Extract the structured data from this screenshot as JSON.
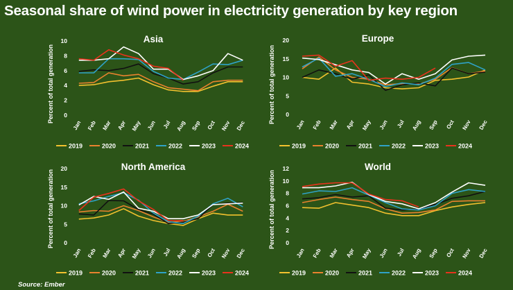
{
  "title": "Seasonal share of wind power in electricity generation by key region",
  "source": "Source: Ember",
  "colors": {
    "background": "#2c5418",
    "2019": "#f2c12e",
    "2020": "#e9822e",
    "2021": "#111111",
    "2022": "#2fa2c7",
    "2023": "#ffffff",
    "2024": "#e8331d"
  },
  "chart_data": [
    {
      "type": "line",
      "title": "Asia",
      "ylabel": "Percent of total generation",
      "xlabel": "",
      "ylim": [
        0,
        10
      ],
      "yticks": [
        0,
        2,
        4,
        6,
        8,
        10
      ],
      "categories": [
        "Jan",
        "Feb",
        "Mar",
        "Apr",
        "May",
        "Jun",
        "Jul",
        "Aug",
        "Sep",
        "Oct",
        "Nov",
        "Dec"
      ],
      "series": [
        {
          "name": "2019",
          "values": [
            4.0,
            4.1,
            4.5,
            4.7,
            5.0,
            4.1,
            3.4,
            3.2,
            3.2,
            3.9,
            4.5,
            4.5
          ]
        },
        {
          "name": "2020",
          "values": [
            4.3,
            4.4,
            5.7,
            5.3,
            5.5,
            4.5,
            3.7,
            3.5,
            3.3,
            4.5,
            4.7,
            4.7
          ]
        },
        {
          "name": "2021",
          "values": [
            5.9,
            6.1,
            6.0,
            6.3,
            6.9,
            5.6,
            5.0,
            4.2,
            4.5,
            5.7,
            6.5,
            6.5
          ]
        },
        {
          "name": "2022",
          "values": [
            5.7,
            5.7,
            7.6,
            7.6,
            7.5,
            5.9,
            5.0,
            4.8,
            5.8,
            6.9,
            6.8,
            7.4
          ]
        },
        {
          "name": "2023",
          "values": [
            7.4,
            7.4,
            7.6,
            9.2,
            8.3,
            6.2,
            6.2,
            4.8,
            5.3,
            6.0,
            8.3,
            7.4
          ]
        },
        {
          "name": "2024",
          "values": [
            7.6,
            7.4,
            8.8,
            8.1,
            7.6,
            6.6,
            6.3,
            4.7,
            null,
            null,
            null,
            null
          ]
        }
      ]
    },
    {
      "type": "line",
      "title": "Europe",
      "ylabel": "Percent of total generation",
      "xlabel": "",
      "ylim": [
        0,
        20
      ],
      "yticks": [
        0,
        5,
        10,
        15,
        20
      ],
      "categories": [
        "Jan",
        "Feb",
        "Mar",
        "Apr",
        "May",
        "Jun",
        "Jul",
        "Aug",
        "Sep",
        "Oct",
        "Nov",
        "Dec"
      ],
      "series": [
        {
          "name": "2019",
          "values": [
            10.0,
            9.5,
            12.5,
            8.7,
            8.2,
            7.2,
            6.9,
            7.2,
            9.2,
            9.5,
            10.1,
            12.0
          ]
        },
        {
          "name": "2020",
          "values": [
            12.3,
            15.5,
            12.0,
            10.0,
            9.5,
            8.0,
            8.3,
            8.2,
            9.5,
            12.6,
            11.0,
            11.7
          ]
        },
        {
          "name": "2021",
          "values": [
            10.0,
            12.0,
            11.0,
            9.5,
            10.7,
            6.5,
            8.0,
            8.5,
            7.7,
            12.5,
            11.0,
            11.4
          ]
        },
        {
          "name": "2022",
          "values": [
            12.8,
            15.2,
            10.3,
            11.0,
            9.5,
            7.5,
            8.5,
            8.0,
            9.8,
            13.5,
            14.0,
            12.0
          ]
        },
        {
          "name": "2023",
          "values": [
            15.2,
            14.8,
            13.4,
            12.0,
            11.3,
            8.2,
            11.0,
            9.5,
            11.0,
            14.7,
            15.7,
            16.0
          ]
        },
        {
          "name": "2024",
          "values": [
            15.7,
            16.0,
            13.0,
            14.5,
            9.2,
            9.8,
            9.5,
            10.0,
            12.5,
            null,
            null,
            null
          ]
        }
      ]
    },
    {
      "type": "line",
      "title": "North America",
      "ylabel": "Percent of total generation",
      "xlabel": "",
      "ylim": [
        0,
        20
      ],
      "yticks": [
        0,
        5,
        10,
        15,
        20
      ],
      "categories": [
        "Jan",
        "Feb",
        "Mar",
        "Apr",
        "May",
        "Jun",
        "Jul",
        "Aug",
        "Sep",
        "Oct",
        "Nov",
        "Dec"
      ],
      "series": [
        {
          "name": "2019",
          "values": [
            6.4,
            6.7,
            7.5,
            9.2,
            7.2,
            6.0,
            5.2,
            4.7,
            6.5,
            8.0,
            7.5,
            7.5
          ]
        },
        {
          "name": "2020",
          "values": [
            8.3,
            8.7,
            8.5,
            10.0,
            8.7,
            7.0,
            5.5,
            5.8,
            7.0,
            8.5,
            10.4,
            8.5
          ]
        },
        {
          "name": "2021",
          "values": [
            7.8,
            7.5,
            11.4,
            11.3,
            9.0,
            7.7,
            5.2,
            5.6,
            6.5,
            10.3,
            10.7,
            10.8
          ]
        },
        {
          "name": "2022",
          "values": [
            10.5,
            11.3,
            12.5,
            13.5,
            11.5,
            8.0,
            5.7,
            5.2,
            7.2,
            10.5,
            12.0,
            9.7
          ]
        },
        {
          "name": "2023",
          "values": [
            10.2,
            12.5,
            11.7,
            13.7,
            9.3,
            8.5,
            6.5,
            6.5,
            7.5,
            10.3,
            10.5,
            10.7
          ]
        },
        {
          "name": "2024",
          "values": [
            8.7,
            12.3,
            13.3,
            14.5,
            11.3,
            9.0,
            6.0,
            6.0,
            null,
            null,
            null,
            null
          ]
        }
      ]
    },
    {
      "type": "line",
      "title": "World",
      "ylabel": "Percent of total generation",
      "xlabel": "",
      "ylim": [
        0,
        12
      ],
      "yticks": [
        0,
        2,
        4,
        6,
        8,
        10,
        12
      ],
      "categories": [
        "Jan",
        "Feb",
        "Mar",
        "Apr",
        "May",
        "Jun",
        "Jul",
        "Aug",
        "Sep",
        "Oct",
        "Nov",
        "Dec"
      ],
      "series": [
        {
          "name": "2019",
          "values": [
            5.7,
            5.6,
            6.5,
            6.1,
            5.7,
            4.8,
            4.4,
            4.4,
            5.2,
            5.8,
            6.2,
            6.5
          ]
        },
        {
          "name": "2020",
          "values": [
            6.5,
            7.0,
            7.4,
            7.0,
            6.7,
            5.5,
            4.8,
            4.9,
            5.3,
            6.7,
            6.8,
            6.8
          ]
        },
        {
          "name": "2021",
          "values": [
            7.1,
            7.3,
            7.8,
            7.4,
            7.6,
            5.6,
            5.3,
            5.5,
            6.2,
            7.2,
            7.6,
            8.3
          ]
        },
        {
          "name": "2022",
          "values": [
            7.9,
            8.4,
            8.3,
            8.9,
            7.7,
            6.5,
            5.5,
            5.3,
            6.0,
            8.0,
            8.6,
            8.3
          ]
        },
        {
          "name": "2023",
          "values": [
            8.9,
            8.9,
            9.2,
            9.8,
            7.8,
            6.7,
            6.3,
            5.5,
            6.5,
            8.2,
            9.7,
            9.3
          ]
        },
        {
          "name": "2024",
          "values": [
            9.1,
            9.5,
            9.7,
            9.7,
            7.9,
            7.0,
            6.8,
            5.8,
            null,
            null,
            null,
            null
          ]
        }
      ]
    }
  ]
}
